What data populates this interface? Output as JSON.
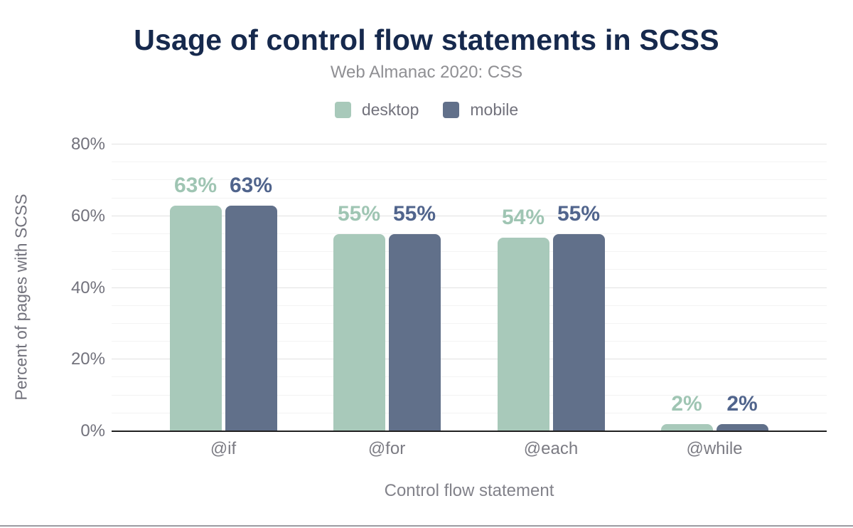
{
  "header": {
    "title": "Usage of control flow statements in SCSS",
    "subtitle": "Web Almanac 2020: CSS"
  },
  "legend": {
    "items": [
      {
        "label": "desktop",
        "color": "#a8c9ba"
      },
      {
        "label": "mobile",
        "color": "#61708a"
      }
    ]
  },
  "y_axis": {
    "title": "Percent of pages with SCSS",
    "tick_labels": [
      "0%",
      "20%",
      "40%",
      "60%",
      "80%"
    ]
  },
  "x_axis": {
    "title": "Control flow statement"
  },
  "chart_data": {
    "type": "bar",
    "title": "Usage of control flow statements in SCSS",
    "subtitle": "Web Almanac 2020: CSS",
    "categories": [
      "@if",
      "@for",
      "@each",
      "@while"
    ],
    "series": [
      {
        "name": "desktop",
        "values": [
          63,
          55,
          54,
          2
        ],
        "labels": [
          "63%",
          "55%",
          "54%",
          "2%"
        ],
        "color": "#a8c9ba",
        "label_color": "#9fc5b3"
      },
      {
        "name": "mobile",
        "values": [
          63,
          55,
          55,
          2
        ],
        "labels": [
          "63%",
          "55%",
          "55%",
          "2%"
        ],
        "color": "#61708a",
        "label_color": "#50648c"
      }
    ],
    "xlabel": "Control flow statement",
    "ylabel": "Percent of pages with SCSS",
    "ylim": [
      0,
      80
    ],
    "yticks": [
      0,
      20,
      40,
      60,
      80
    ],
    "minor_tick_step": 5,
    "grid": "horizontal",
    "legend_position": "top"
  },
  "colors": {
    "title_text": "#16294d",
    "subtitle_text": "#8f8f93",
    "axis_text": "#72727c",
    "major_grid": "#e2e2e2",
    "minor_grid": "#f3f3f3",
    "axis_line": "#202020"
  }
}
